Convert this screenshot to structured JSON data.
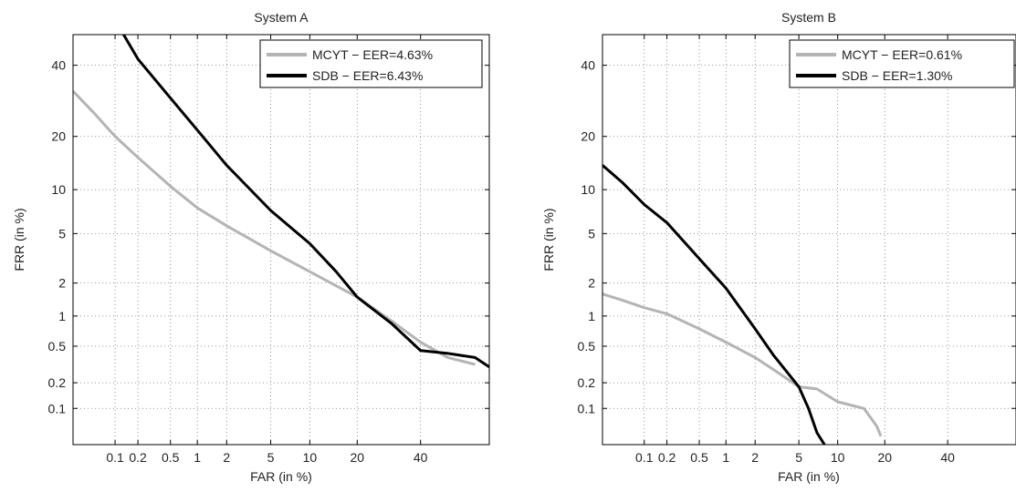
{
  "chart_data": [
    {
      "type": "line",
      "title": "System A",
      "xlabel": "FAR (in %)",
      "ylabel": "FRR (in %)",
      "x_scale": "normal-deviate",
      "y_scale": "normal-deviate",
      "xlim": [
        0.025,
        65
      ],
      "ylim": [
        0.035,
        50
      ],
      "xticks": [
        0.1,
        0.2,
        0.5,
        1,
        2,
        5,
        10,
        20,
        40
      ],
      "xtick_labels": [
        "0.1",
        "0.2",
        "0.5",
        "1",
        "2",
        "5",
        "10",
        "20",
        "40"
      ],
      "yticks": [
        0.1,
        0.2,
        0.5,
        1,
        2,
        5,
        10,
        20,
        40
      ],
      "ytick_labels": [
        "0.1",
        "0.2",
        "0.5",
        "1",
        "2",
        "5",
        "10",
        "20",
        "40"
      ],
      "grid": true,
      "legend_position": "top-right",
      "series": [
        {
          "name": "MCYT − EER=4.63%",
          "color": "#b4b4b4",
          "x": [
            0.025,
            0.05,
            0.1,
            0.2,
            0.5,
            1,
            2,
            5,
            10,
            20,
            30,
            40,
            50,
            60
          ],
          "y": [
            32,
            26,
            20,
            15.5,
            10.5,
            7.6,
            5.7,
            3.7,
            2.5,
            1.5,
            0.9,
            0.55,
            0.38,
            0.32
          ]
        },
        {
          "name": "SDB − EER=6.43%",
          "color": "#000000",
          "x": [
            0.13,
            0.2,
            0.5,
            1,
            2,
            5,
            10,
            15,
            20,
            30,
            40,
            50,
            60,
            65
          ],
          "y": [
            50,
            42,
            30,
            21.5,
            14,
            7.3,
            4.2,
            2.5,
            1.5,
            0.85,
            0.45,
            0.42,
            0.38,
            0.3
          ]
        }
      ]
    },
    {
      "type": "line",
      "title": "System B",
      "xlabel": "FAR (in %)",
      "ylabel": "FRR (in %)",
      "x_scale": "normal-deviate",
      "y_scale": "normal-deviate",
      "xlim": [
        0.025,
        65
      ],
      "ylim": [
        0.035,
        50
      ],
      "xticks": [
        0.1,
        0.2,
        0.5,
        1,
        2,
        5,
        10,
        20,
        40
      ],
      "xtick_labels": [
        "0.1",
        "0.2",
        "0.5",
        "1",
        "2",
        "5",
        "10",
        "20",
        "40"
      ],
      "yticks": [
        0.1,
        0.2,
        0.5,
        1,
        2,
        5,
        10,
        20,
        40
      ],
      "ytick_labels": [
        "0.1",
        "0.2",
        "0.5",
        "1",
        "2",
        "5",
        "10",
        "20",
        "40"
      ],
      "grid": true,
      "legend_position": "top-right",
      "series": [
        {
          "name": "MCYT − EER=0.61%",
          "color": "#b4b4b4",
          "x": [
            0.025,
            0.05,
            0.1,
            0.2,
            0.5,
            1,
            2,
            3,
            5,
            7,
            10,
            15,
            18,
            19
          ],
          "y": [
            1.6,
            1.4,
            1.2,
            1.05,
            0.75,
            0.55,
            0.38,
            0.28,
            0.18,
            0.17,
            0.12,
            0.1,
            0.06,
            0.045
          ]
        },
        {
          "name": "SDB − EER=1.30%",
          "color": "#000000",
          "x": [
            0.025,
            0.05,
            0.1,
            0.2,
            0.5,
            1,
            2,
            3,
            5,
            6,
            7,
            8
          ],
          "y": [
            14,
            11,
            8,
            6,
            3.2,
            1.8,
            0.75,
            0.4,
            0.18,
            0.1,
            0.05,
            0.035
          ]
        }
      ]
    }
  ]
}
